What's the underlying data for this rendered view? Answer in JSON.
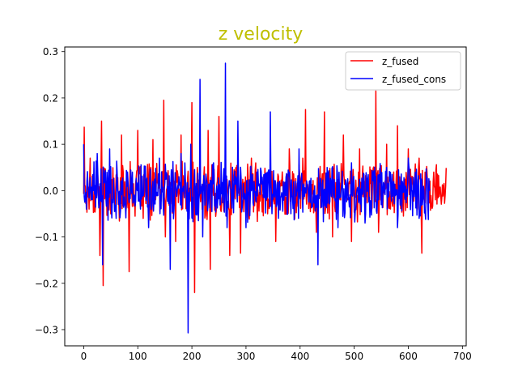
{
  "chart_data": {
    "type": "line",
    "title": "z velocity",
    "title_color": "#bfbf00",
    "xlabel": "",
    "ylabel": "",
    "xlim": [
      -35,
      707
    ],
    "ylim": [
      -0.335,
      0.31
    ],
    "xticks": [
      0,
      100,
      200,
      300,
      400,
      500,
      600,
      700
    ],
    "yticks": [
      -0.3,
      -0.2,
      -0.1,
      0.0,
      0.1,
      0.2,
      0.3
    ],
    "xtick_labels": [
      "0",
      "100",
      "200",
      "300",
      "400",
      "500",
      "600",
      "700"
    ],
    "ytick_labels": [
      "−0.3",
      "−0.2",
      "−0.1",
      "0.0",
      "0.1",
      "0.2",
      "0.3"
    ],
    "grid": false,
    "legend_position": "top-right",
    "series": [
      {
        "name": "z_fused",
        "color": "#ff0000",
        "n_points": 671,
        "x_range": [
          0,
          670
        ],
        "spikes": [
          {
            "x": 1,
            "y": 0.137
          },
          {
            "x": 3,
            "y": 0.01
          },
          {
            "x": 12,
            "y": 0.07
          },
          {
            "x": 30,
            "y": -0.14
          },
          {
            "x": 33,
            "y": 0.15
          },
          {
            "x": 36,
            "y": -0.205
          },
          {
            "x": 50,
            "y": -0.05
          },
          {
            "x": 70,
            "y": 0.12
          },
          {
            "x": 84,
            "y": -0.175
          },
          {
            "x": 100,
            "y": 0.13
          },
          {
            "x": 110,
            "y": -0.06
          },
          {
            "x": 128,
            "y": 0.11
          },
          {
            "x": 148,
            "y": 0.195
          },
          {
            "x": 151,
            "y": -0.1
          },
          {
            "x": 170,
            "y": -0.11
          },
          {
            "x": 180,
            "y": 0.12
          },
          {
            "x": 200,
            "y": 0.19
          },
          {
            "x": 205,
            "y": -0.22
          },
          {
            "x": 210,
            "y": 0.05
          },
          {
            "x": 230,
            "y": 0.13
          },
          {
            "x": 234,
            "y": -0.17
          },
          {
            "x": 250,
            "y": 0.16
          },
          {
            "x": 270,
            "y": -0.14
          },
          {
            "x": 290,
            "y": -0.135
          },
          {
            "x": 310,
            "y": 0.07
          },
          {
            "x": 340,
            "y": -0.05
          },
          {
            "x": 355,
            "y": -0.11
          },
          {
            "x": 380,
            "y": 0.09
          },
          {
            "x": 405,
            "y": 0.07
          },
          {
            "x": 410,
            "y": 0.175
          },
          {
            "x": 430,
            "y": -0.09
          },
          {
            "x": 445,
            "y": 0.17
          },
          {
            "x": 460,
            "y": -0.1
          },
          {
            "x": 480,
            "y": 0.12
          },
          {
            "x": 495,
            "y": -0.11
          },
          {
            "x": 510,
            "y": 0.09
          },
          {
            "x": 540,
            "y": 0.215
          },
          {
            "x": 545,
            "y": -0.09
          },
          {
            "x": 560,
            "y": 0.1
          },
          {
            "x": 580,
            "y": 0.14
          },
          {
            "x": 600,
            "y": 0.09
          },
          {
            "x": 620,
            "y": 0.07
          },
          {
            "x": 625,
            "y": -0.135
          },
          {
            "x": 635,
            "y": 0.03
          },
          {
            "x": 650,
            "y": -0.02
          }
        ]
      },
      {
        "name": "z_fused_cons",
        "color": "#0000ff",
        "n_points": 641,
        "x_range": [
          0,
          640
        ],
        "spikes": [
          {
            "x": 0,
            "y": 0.1
          },
          {
            "x": 5,
            "y": -0.04
          },
          {
            "x": 25,
            "y": 0.08
          },
          {
            "x": 35,
            "y": -0.16
          },
          {
            "x": 48,
            "y": 0.09
          },
          {
            "x": 60,
            "y": -0.06
          },
          {
            "x": 90,
            "y": 0.04
          },
          {
            "x": 120,
            "y": -0.08
          },
          {
            "x": 140,
            "y": 0.07
          },
          {
            "x": 160,
            "y": -0.17
          },
          {
            "x": 180,
            "y": 0.08
          },
          {
            "x": 193,
            "y": -0.307
          },
          {
            "x": 198,
            "y": 0.1
          },
          {
            "x": 215,
            "y": 0.24
          },
          {
            "x": 220,
            "y": -0.1
          },
          {
            "x": 240,
            "y": 0.06
          },
          {
            "x": 262,
            "y": 0.275
          },
          {
            "x": 265,
            "y": -0.08
          },
          {
            "x": 285,
            "y": 0.15
          },
          {
            "x": 300,
            "y": -0.08
          },
          {
            "x": 320,
            "y": 0.04
          },
          {
            "x": 345,
            "y": 0.17
          },
          {
            "x": 360,
            "y": -0.06
          },
          {
            "x": 380,
            "y": 0.04
          },
          {
            "x": 398,
            "y": 0.09
          },
          {
            "x": 433,
            "y": -0.16
          },
          {
            "x": 450,
            "y": 0.05
          },
          {
            "x": 470,
            "y": -0.08
          },
          {
            "x": 495,
            "y": 0.06
          },
          {
            "x": 520,
            "y": -0.07
          },
          {
            "x": 560,
            "y": 0.05
          },
          {
            "x": 580,
            "y": -0.08
          },
          {
            "x": 600,
            "y": 0.07
          },
          {
            "x": 620,
            "y": -0.06
          },
          {
            "x": 640,
            "y": 0.0
          }
        ]
      }
    ]
  }
}
